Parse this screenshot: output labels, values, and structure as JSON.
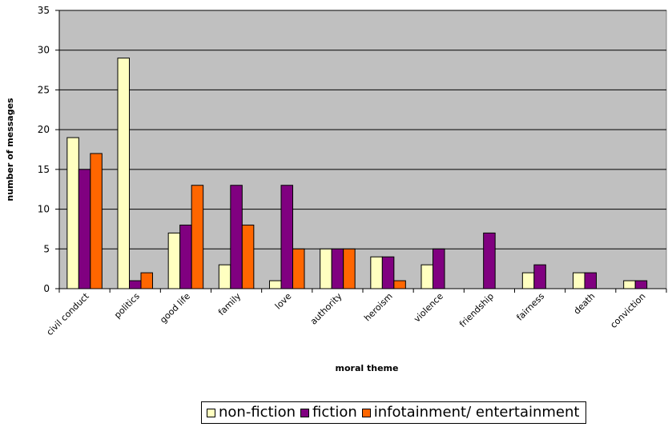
{
  "chart_data": {
    "type": "bar",
    "categories": [
      "civil conduct",
      "politics",
      "good life",
      "family",
      "love",
      "authority",
      "heroism",
      "violence",
      "friendship",
      "fairness",
      "death",
      "conviction"
    ],
    "series": [
      {
        "name": "non-fiction",
        "values": [
          19,
          29,
          7,
          3,
          1,
          5,
          4,
          3,
          0,
          2,
          2,
          1
        ],
        "color": "#ffffc0"
      },
      {
        "name": "fiction",
        "values": [
          15,
          1,
          8,
          13,
          13,
          5,
          4,
          5,
          7,
          3,
          2,
          1
        ],
        "color": "#800080"
      },
      {
        "name": "infotainment/ entertainment",
        "values": [
          17,
          2,
          13,
          8,
          5,
          5,
          1,
          0,
          0,
          0,
          0,
          0
        ],
        "color": "#ff6600"
      }
    ],
    "xlabel": "moral theme",
    "ylabel": "number of messages",
    "ylim": [
      0,
      35
    ],
    "yticks": [
      "0",
      "5",
      "10",
      "15",
      "20",
      "25",
      "30",
      "35"
    ],
    "grid": true,
    "legend_position": "bottom",
    "plot_background": "#c0c0c0"
  }
}
